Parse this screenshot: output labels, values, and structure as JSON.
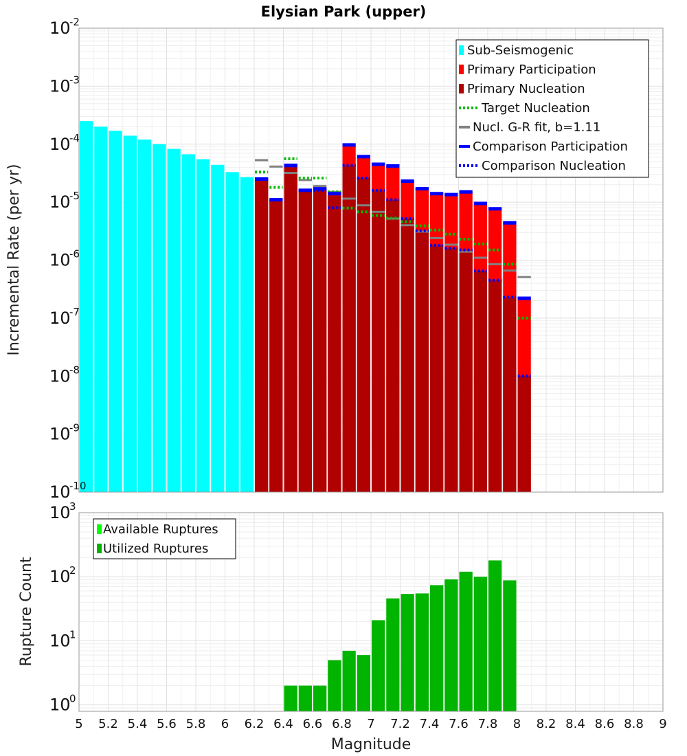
{
  "chart_data": [
    {
      "type": "bar",
      "title": "Elysian Park (upper)",
      "ylabel": "Incremental Rate (per yr)",
      "xlabel": "",
      "scale": "log",
      "xlim": [
        5,
        9
      ],
      "ylim_exponents": [
        -10,
        -2
      ],
      "ytick_base": "10",
      "ytick_exponents": [
        "-2",
        "-3",
        "-4",
        "-5",
        "-6",
        "-7",
        "-8",
        "-9",
        "-10"
      ],
      "bin_width": 0.1,
      "legend": [
        {
          "label": "Sub-Seismogenic",
          "color": "#00ffff",
          "style": "box"
        },
        {
          "label": "Primary Participation",
          "color": "#ff0000",
          "style": "box"
        },
        {
          "label": "Primary Nucleation",
          "color": "#b00000",
          "style": "box"
        },
        {
          "label": "Target Nucleation",
          "color": "#00bb00",
          "style": "dotted"
        },
        {
          "label": "Nucl. G-R fit, b=1.11",
          "color": "#808080",
          "style": "solid"
        },
        {
          "label": "Comparison Participation",
          "color": "#0000ff",
          "style": "solid"
        },
        {
          "label": "Comparison Nucleation",
          "color": "#0000ff",
          "style": "dotted"
        }
      ],
      "sub_seismogenic": {
        "x": [
          5.05,
          5.15,
          5.25,
          5.35,
          5.45,
          5.55,
          5.65,
          5.75,
          5.85,
          5.95,
          6.05,
          6.15
        ],
        "values": [
          0.00025,
          0.0002,
          0.00017,
          0.00014,
          0.00012,
          0.0001,
          8.3e-05,
          6.7e-05,
          5.5e-05,
          4.4e-05,
          3.3e-05,
          2.7e-05
        ]
      },
      "primary_participation": {
        "x": [
          6.25,
          6.35,
          6.45,
          6.55,
          6.65,
          6.75,
          6.85,
          6.95,
          7.05,
          7.15,
          7.25,
          7.35,
          7.45,
          7.55,
          7.65,
          7.75,
          7.85,
          7.95,
          8.05
        ],
        "values": [
          2.5e-05,
          1.1e-05,
          4.2e-05,
          1.6e-05,
          1.7e-05,
          1.4e-05,
          9.5e-05,
          6e-05,
          4.5e-05,
          4.2e-05,
          2.3e-05,
          1.7e-05,
          1.4e-05,
          1.35e-05,
          1.5e-05,
          9.5e-06,
          7.7e-06,
          4.3e-06,
          2.2e-07
        ]
      },
      "primary_nucleation": {
        "x": [
          6.25,
          6.35,
          6.45,
          6.55,
          6.65,
          6.75,
          6.85,
          6.95,
          7.05,
          7.15,
          7.25,
          7.35,
          7.45,
          7.55,
          7.65,
          7.75,
          7.85,
          7.95,
          8.05
        ],
        "values": [
          2.5e-05,
          1.1e-05,
          4.2e-05,
          1.6e-05,
          1.7e-05,
          1.3e-05,
          4.3e-05,
          2.6e-05,
          1.6e-05,
          1.1e-05,
          5.2e-06,
          3.2e-06,
          1.8e-06,
          1.6e-06,
          1.5e-06,
          6.5e-07,
          4.5e-07,
          2.3e-07,
          1e-08
        ]
      },
      "target_nucleation": {
        "x": [
          6.25,
          6.35,
          6.45,
          6.55,
          6.65,
          6.75,
          6.85,
          6.95,
          7.05,
          7.15,
          7.25,
          7.35,
          7.45,
          7.55,
          7.65,
          7.75,
          7.85,
          7.95,
          8.05
        ],
        "values": [
          3.3e-05,
          1.8e-05,
          5.6e-05,
          2.6e-05,
          2.6e-05,
          1.5e-05,
          7.9e-06,
          6.8e-06,
          5.9e-06,
          5.3e-06,
          4.6e-06,
          3.9e-06,
          3.3e-06,
          2.8e-06,
          2.3e-06,
          1.9e-06,
          1.5e-06,
          8.5e-07,
          1e-07
        ]
      },
      "gr_fit": {
        "x": [
          6.25,
          6.35,
          6.45,
          6.55,
          6.65,
          6.75,
          6.85,
          6.95,
          7.05,
          7.15,
          7.25,
          7.35,
          7.45,
          7.55,
          7.65,
          7.75,
          7.85,
          7.95,
          8.05
        ],
        "values": [
          5.3e-05,
          4.1e-05,
          3.2e-05,
          2.4e-05,
          1.9e-05,
          1.5e-05,
          1.15e-05,
          8.8e-06,
          6.8e-06,
          5.2e-06,
          4e-06,
          3.1e-06,
          2.4e-06,
          1.85e-06,
          1.4e-06,
          1.1e-06,
          8.5e-07,
          6.6e-07,
          5.1e-07
        ]
      },
      "comparison_participation": {
        "x": [
          6.25,
          6.35,
          6.45,
          6.55,
          6.65,
          6.75,
          6.85,
          6.95,
          7.05,
          7.15,
          7.25,
          7.35,
          7.45,
          7.55,
          7.65,
          7.75,
          7.85,
          7.95,
          8.05
        ],
        "values": [
          2.5e-05,
          1.1e-05,
          4.3e-05,
          1.6e-05,
          1.7e-05,
          1.4e-05,
          9.7e-05,
          6.1e-05,
          4.5e-05,
          4.2e-05,
          2.3e-05,
          1.7e-05,
          1.4e-05,
          1.35e-05,
          1.5e-05,
          9.5e-06,
          7.7e-06,
          4.4e-06,
          2.2e-07
        ]
      },
      "comparison_nucleation": {
        "x": [
          6.25,
          6.35,
          6.45,
          6.55,
          6.65,
          6.75,
          6.85,
          6.95,
          7.05,
          7.15,
          7.25,
          7.35,
          7.45,
          7.55,
          7.65,
          7.75,
          7.85,
          7.95,
          8.05
        ],
        "values": [
          2.5e-05,
          1.1e-05,
          4.2e-05,
          1.6e-05,
          1.6e-05,
          8e-06,
          4.3e-05,
          2.6e-05,
          1.6e-05,
          1.1e-05,
          5.2e-06,
          3.2e-06,
          1.8e-06,
          1.6e-06,
          1.5e-06,
          6.5e-07,
          4.5e-07,
          2.3e-07,
          1e-08
        ]
      }
    },
    {
      "type": "bar",
      "title": "",
      "ylabel": "Rupture Count",
      "xlabel": "Magnitude",
      "scale": "log",
      "xlim": [
        5,
        9
      ],
      "ylim_exponents": [
        -0.1,
        3
      ],
      "ytick_base": "10",
      "ytick_exponents": [
        "3",
        "2",
        "1",
        "0"
      ],
      "xticks": [
        "5",
        "5.2",
        "5.4",
        "5.6",
        "5.8",
        "6",
        "6.2",
        "6.4",
        "6.6",
        "6.8",
        "7",
        "7.2",
        "7.4",
        "7.6",
        "7.8",
        "8",
        "8.2",
        "8.4",
        "8.6",
        "8.8",
        "9"
      ],
      "legend": [
        {
          "label": "Available Ruptures",
          "color": "#00ff00",
          "style": "box"
        },
        {
          "label": "Utilized Ruptures",
          "color": "#00b400",
          "style": "box"
        }
      ],
      "utilized": {
        "x": [
          6.45,
          6.55,
          6.65,
          6.75,
          6.85,
          6.95,
          7.05,
          7.15,
          7.25,
          7.35,
          7.45,
          7.55,
          7.65,
          7.75,
          7.85,
          7.95
        ],
        "values": [
          2,
          2,
          2,
          5,
          7,
          6,
          21,
          46,
          54,
          55,
          74,
          91,
          120,
          100,
          180,
          88
        ]
      }
    }
  ]
}
